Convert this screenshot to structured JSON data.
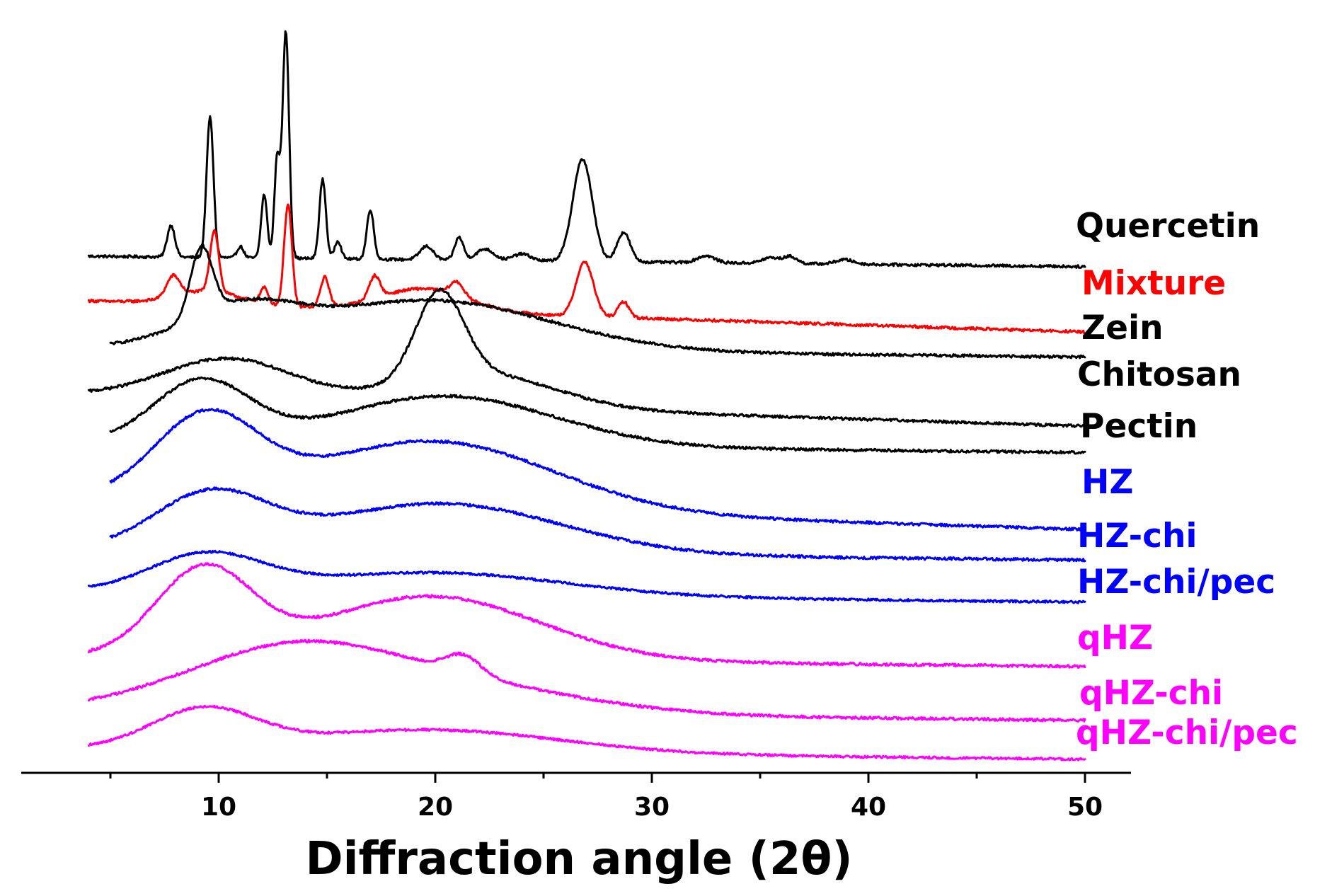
{
  "chart_data": {
    "type": "line",
    "title": "",
    "xlabel": "Diffraction angle (2θ)",
    "ylabel": "",
    "xlim": [
      1,
      52
    ],
    "x_ticks": [
      10,
      20,
      30,
      40,
      50
    ],
    "x_minor_ticks": [
      5,
      15,
      25,
      35,
      45
    ],
    "grid": false,
    "legend": "labels placed at right end of each trace",
    "series": [
      {
        "name": "Quercetin",
        "color": "#000000",
        "x_range": [
          4,
          50
        ],
        "tilt": -0.01,
        "noise": 0.006,
        "peaks": [
          [
            7.8,
            0.14,
            0.18
          ],
          [
            9.6,
            0.62,
            0.16
          ],
          [
            11.0,
            0.05,
            0.15
          ],
          [
            12.1,
            0.28,
            0.14
          ],
          [
            12.7,
            0.44,
            0.13
          ],
          [
            13.1,
            1.0,
            0.15
          ],
          [
            14.8,
            0.35,
            0.15
          ],
          [
            15.5,
            0.08,
            0.15
          ],
          [
            17.0,
            0.22,
            0.16
          ],
          [
            19.6,
            0.06,
            0.3
          ],
          [
            21.1,
            0.1,
            0.2
          ],
          [
            22.3,
            0.05,
            0.4
          ],
          [
            24.0,
            0.03,
            0.4
          ],
          [
            26.8,
            0.45,
            0.45
          ],
          [
            28.7,
            0.13,
            0.3
          ],
          [
            32.5,
            0.03,
            0.4
          ],
          [
            35.5,
            0.025,
            0.4
          ],
          [
            36.4,
            0.03,
            0.3
          ],
          [
            38.9,
            0.02,
            0.4
          ]
        ]
      },
      {
        "name": "Mixture",
        "color": "#ff0000",
        "x_range": [
          4,
          50
        ],
        "tilt": -0.03,
        "noise": 0.006,
        "peaks": [
          [
            7.9,
            0.09,
            0.3
          ],
          [
            9.8,
            0.27,
            0.2
          ],
          [
            12.1,
            0.07,
            0.18
          ],
          [
            13.2,
            0.45,
            0.18
          ],
          [
            14.9,
            0.13,
            0.2
          ],
          [
            17.2,
            0.1,
            0.25
          ],
          [
            19.5,
            0.1,
            2.0
          ],
          [
            21.0,
            0.06,
            0.3
          ],
          [
            26.9,
            0.24,
            0.4
          ],
          [
            28.7,
            0.07,
            0.25
          ],
          [
            9.5,
            0.06,
            1.5
          ]
        ]
      },
      {
        "name": "Zein",
        "color": "#000000",
        "x_range": [
          5,
          50
        ],
        "tilt": -0.01,
        "noise": 0.006,
        "peaks": [
          [
            9.2,
            0.3,
            0.5
          ],
          [
            11.0,
            0.15,
            2.5
          ],
          [
            19.8,
            0.22,
            5.5
          ]
        ]
      },
      {
        "name": "Chitosan",
        "color": "#000000",
        "x_range": [
          4,
          50
        ],
        "tilt": -0.03,
        "noise": 0.006,
        "peaks": [
          [
            10.5,
            0.18,
            3.0
          ],
          [
            20.2,
            0.38,
            1.1
          ],
          [
            22.0,
            0.15,
            3.5
          ]
        ]
      },
      {
        "name": "Pectin",
        "color": "#000000",
        "x_range": [
          5,
          50
        ],
        "tilt": -0.01,
        "noise": 0.006,
        "peaks": [
          [
            9.2,
            0.27,
            2.2
          ],
          [
            20.5,
            0.22,
            5.0
          ]
        ]
      },
      {
        "name": "HZ",
        "color": "#0000ff",
        "x_range": [
          5,
          50
        ],
        "tilt": -0.03,
        "noise": 0.006,
        "peaks": [
          [
            9.4,
            0.36,
            2.4
          ],
          [
            20.0,
            0.3,
            5.5
          ]
        ]
      },
      {
        "name": "HZ-chi",
        "color": "#0000ff",
        "x_range": [
          5,
          50
        ],
        "tilt": -0.01,
        "noise": 0.006,
        "peaks": [
          [
            9.6,
            0.24,
            2.6
          ],
          [
            20.3,
            0.22,
            5.5
          ]
        ]
      },
      {
        "name": "HZ-chi/pec",
        "color": "#0000ff",
        "x_range": [
          4,
          50
        ],
        "tilt": -0.01,
        "noise": 0.005,
        "peaks": [
          [
            9.4,
            0.16,
            2.6
          ],
          [
            20.0,
            0.1,
            6.0
          ]
        ]
      },
      {
        "name": "qHZ",
        "color": "#ff00ff",
        "x_range": [
          4,
          50
        ],
        "tilt": -0.01,
        "noise": 0.006,
        "peaks": [
          [
            9.3,
            0.38,
            2.2
          ],
          [
            19.8,
            0.28,
            5.0
          ]
        ]
      },
      {
        "name": "qHZ-chi",
        "color": "#ff00ff",
        "x_range": [
          4,
          50
        ],
        "tilt": -0.01,
        "noise": 0.006,
        "peaks": [
          [
            13.5,
            0.28,
            5.0
          ],
          [
            21.3,
            0.08,
            0.8
          ],
          [
            22.0,
            0.1,
            5.5
          ]
        ]
      },
      {
        "name": "qHZ-chi/pec",
        "color": "#ff00ff",
        "x_range": [
          4,
          50
        ],
        "tilt": -0.01,
        "noise": 0.005,
        "peaks": [
          [
            9.3,
            0.17,
            2.4
          ],
          [
            19.8,
            0.1,
            6.0
          ]
        ]
      }
    ]
  }
}
